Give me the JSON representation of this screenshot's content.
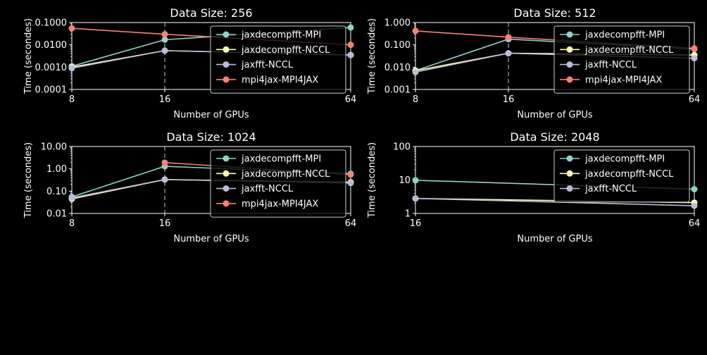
{
  "colors": {
    "background": "#000000",
    "foreground": "#ffffff",
    "series": {
      "jaxdecompfft-MPI": "#8dd3c7",
      "jaxdecompfft-NCCL": "#ffffb3",
      "jaxfft-NCCL": "#bebada",
      "mpi4jax-MPI4JAX": "#fa8072"
    }
  },
  "chart_data": [
    {
      "type": "line",
      "title": "Data Size: 256",
      "xlabel": "Number of GPUs",
      "ylabel": "Time (secondes)",
      "xscale": "log2",
      "yscale": "log",
      "xlim": [
        8,
        64
      ],
      "ylim": [
        0.0001,
        0.1
      ],
      "xticks": [
        8,
        16,
        64
      ],
      "xtick_labels": [
        "8",
        "16",
        "64"
      ],
      "yticks": [
        0.0001,
        0.001,
        0.01,
        0.1
      ],
      "ytick_labels": [
        "0.0001",
        "0.0010",
        "0.0100",
        "0.1000"
      ],
      "vline_x": 16,
      "legend": "top-right",
      "series": [
        {
          "name": "jaxdecompfft-MPI",
          "x": [
            8,
            16,
            64
          ],
          "values": [
            0.0011,
            0.017,
            0.06
          ]
        },
        {
          "name": "jaxdecompfft-NCCL",
          "x": [
            8,
            16,
            64
          ],
          "values": [
            0.001,
            0.0055,
            0.0035
          ]
        },
        {
          "name": "jaxfft-NCCL",
          "x": [
            8,
            16,
            64
          ],
          "values": [
            0.0009,
            0.0055,
            0.0035
          ]
        },
        {
          "name": "mpi4jax-MPI4JAX",
          "x": [
            8,
            16,
            64
          ],
          "values": [
            0.055,
            0.03,
            0.01
          ]
        }
      ]
    },
    {
      "type": "line",
      "title": "Data Size: 512",
      "xlabel": "Number of GPUs",
      "ylabel": "Time (secondes)",
      "xscale": "log2",
      "yscale": "log",
      "xlim": [
        8,
        64
      ],
      "ylim": [
        0.001,
        1
      ],
      "xticks": [
        8,
        16,
        64
      ],
      "xtick_labels": [
        "8",
        "16",
        "64"
      ],
      "yticks": [
        0.001,
        0.01,
        0.1,
        1
      ],
      "ytick_labels": [
        "0.001",
        "0.010",
        "0.100",
        "1.000"
      ],
      "vline_x": 16,
      "legend": "top-right",
      "series": [
        {
          "name": "jaxdecompfft-MPI",
          "x": [
            8,
            16,
            64
          ],
          "values": [
            0.007,
            0.18,
            0.065
          ]
        },
        {
          "name": "jaxdecompfft-NCCL",
          "x": [
            8,
            16,
            64
          ],
          "values": [
            0.007,
            0.042,
            0.035
          ]
        },
        {
          "name": "jaxfft-NCCL",
          "x": [
            8,
            16,
            64
          ],
          "values": [
            0.006,
            0.042,
            0.025
          ]
        },
        {
          "name": "mpi4jax-MPI4JAX",
          "x": [
            8,
            16,
            64
          ],
          "values": [
            0.42,
            0.22,
            0.07
          ]
        }
      ]
    },
    {
      "type": "line",
      "title": "Data Size: 1024",
      "xlabel": "Number of GPUs",
      "ylabel": "Time (secondes)",
      "xscale": "log2",
      "yscale": "log",
      "xlim": [
        8,
        64
      ],
      "ylim": [
        0.01,
        10
      ],
      "xticks": [
        8,
        16,
        64
      ],
      "xtick_labels": [
        "8",
        "16",
        "64"
      ],
      "yticks": [
        0.01,
        0.1,
        1,
        10
      ],
      "ytick_labels": [
        "0.01",
        "0.10",
        "1.00",
        "10.00"
      ],
      "vline_x": 16,
      "legend": "top-right",
      "series": [
        {
          "name": "jaxdecompfft-MPI",
          "x": [
            8,
            16,
            64
          ],
          "values": [
            0.055,
            1.3,
            0.6
          ]
        },
        {
          "name": "jaxdecompfft-NCCL",
          "x": [
            8,
            16,
            64
          ],
          "values": [
            0.045,
            0.33,
            0.25
          ]
        },
        {
          "name": "jaxfft-NCCL",
          "x": [
            8,
            16,
            64
          ],
          "values": [
            0.05,
            0.33,
            0.23
          ]
        },
        {
          "name": "mpi4jax-MPI4JAX",
          "x": [
            16,
            64
          ],
          "values": [
            1.9,
            0.55
          ]
        }
      ]
    },
    {
      "type": "line",
      "title": "Data Size: 2048",
      "xlabel": "Number of GPUs",
      "ylabel": "Time (secondes)",
      "xscale": "log2",
      "yscale": "log",
      "xlim": [
        16,
        64
      ],
      "ylim": [
        1,
        100
      ],
      "xticks": [
        16,
        64
      ],
      "xtick_labels": [
        "16",
        "64"
      ],
      "yticks": [
        1,
        10,
        100
      ],
      "ytick_labels": [
        "1",
        "10",
        "100"
      ],
      "vline_x": null,
      "legend": "top-right",
      "series": [
        {
          "name": "jaxdecompfft-MPI",
          "x": [
            16,
            64
          ],
          "values": [
            9.8,
            5.3
          ]
        },
        {
          "name": "jaxdecompfft-NCCL",
          "x": [
            16,
            64
          ],
          "values": [
            2.8,
            2.1
          ]
        },
        {
          "name": "jaxfft-NCCL",
          "x": [
            16,
            64
          ],
          "values": [
            2.8,
            1.7
          ]
        }
      ]
    }
  ]
}
